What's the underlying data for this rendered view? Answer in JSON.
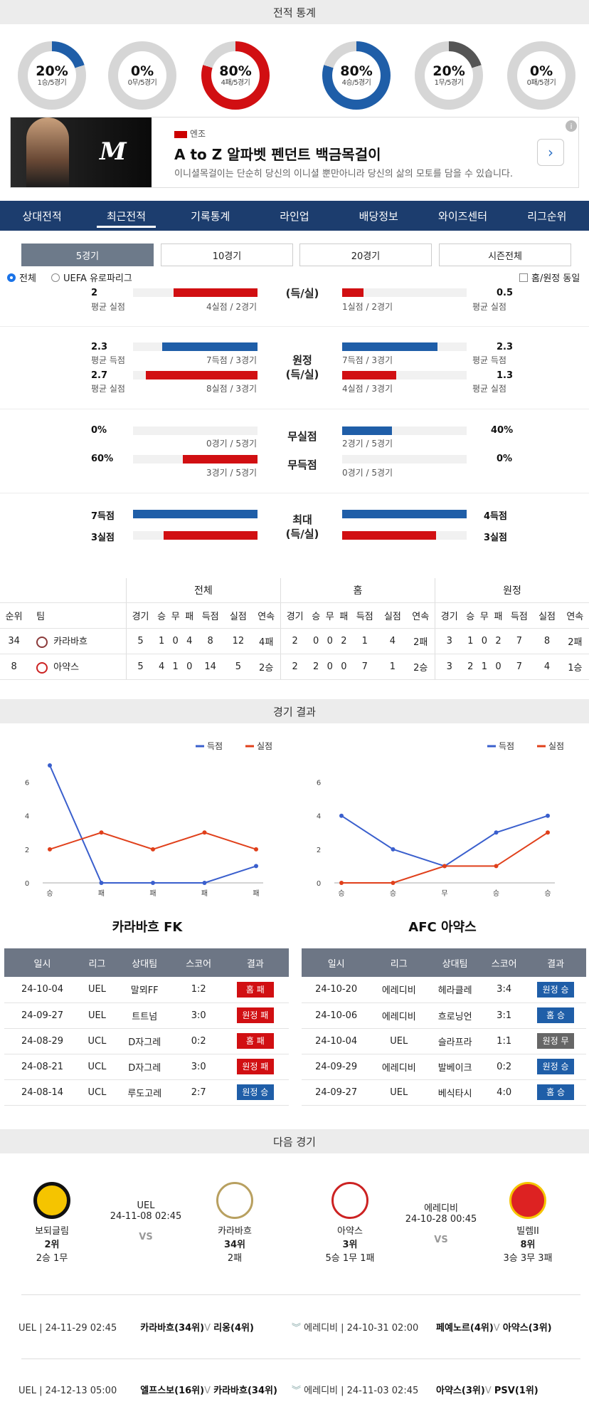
{
  "headers": {
    "record": "전적 통계",
    "match_result": "경기 결과",
    "next_match": "다음 경기"
  },
  "donuts": [
    {
      "pct": "20%",
      "sub": "1승/5경기",
      "fraction": 0.2,
      "color": "#1f5ea8"
    },
    {
      "pct": "0%",
      "sub": "0무/5경기",
      "fraction": 0,
      "color": "#888888"
    },
    {
      "pct": "80%",
      "sub": "4패/5경기",
      "fraction": 0.8,
      "color": "#d10f12"
    },
    {
      "pct": "80%",
      "sub": "4승/5경기",
      "fraction": 0.8,
      "color": "#1f5ea8"
    },
    {
      "pct": "20%",
      "sub": "1무/5경기",
      "fraction": 0.2,
      "color": "#555555"
    },
    {
      "pct": "0%",
      "sub": "0패/5경기",
      "fraction": 0,
      "color": "#d10f12"
    }
  ],
  "ad": {
    "logo": "M",
    "brand": "엔조",
    "title": "A to Z 알파벳 펜던트 백금목걸이",
    "desc": "이니셜목걸이는 단순히 당신의 이니셜 뿐만아니라 당신의 삶의 모토를 담을 수 있습니다.",
    "btn": "›",
    "info": "i"
  },
  "tabs": [
    "상대전적",
    "최근전적",
    "기록통계",
    "라인업",
    "배당정보",
    "와이즈센터",
    "리그순위"
  ],
  "active_tab": 1,
  "subtabs": [
    "5경기",
    "10경기",
    "20경기",
    "시즌전체"
  ],
  "filters": {
    "all": "전체",
    "uel": "UEFA 유로파리그",
    "homeaway": "홈/원정 동일"
  },
  "stats": {
    "row0": {
      "lval": "2",
      "llab": "평균 실점",
      "lsub": "4실점 / 2경기",
      "cent": "(득/실)",
      "rval": "0.5",
      "rlab": "평균 실점",
      "rsub": "1실점 / 2경기"
    },
    "away_scored": {
      "lval": "2.3",
      "llab": "평균 득점",
      "lsub": "7득점 / 3경기",
      "rval": "2.3",
      "rlab": "평균 득점",
      "rsub": "7득점 / 3경기"
    },
    "away_center": "원정\n(득/실)",
    "away_conceded": {
      "lval": "2.7",
      "llab": "평균 실점",
      "lsub": "8실점 / 3경기",
      "rval": "1.3",
      "rlab": "평균 실점",
      "rsub": "4실점 / 3경기"
    },
    "clean": {
      "lval": "0%",
      "lsub": "0경기 / 5경기",
      "cent": "무실점",
      "rval": "40%",
      "rsub": "2경기 / 5경기"
    },
    "noscore": {
      "lval": "60%",
      "lsub": "3경기 / 5경기",
      "cent": "무득점",
      "rval": "0%",
      "rsub": "0경기 / 5경기"
    },
    "max_goals": {
      "lval": "7득점",
      "rval": "4득점"
    },
    "max_center": "최대\n(득/실)",
    "max_conceded": {
      "lval": "3실점",
      "rval": "3실점"
    }
  },
  "standings": {
    "groups": [
      "전체",
      "홈",
      "원정"
    ],
    "cols_left": [
      "순위",
      "팀"
    ],
    "cols": [
      "경기",
      "승",
      "무",
      "패",
      "득점",
      "실점",
      "연속"
    ],
    "rows": [
      {
        "rank": "34",
        "team": "카라바흐",
        "icon": "#8b3a3a",
        "all": [
          "5",
          "1",
          "0",
          "4",
          "8",
          "12",
          "4패"
        ],
        "home": [
          "2",
          "0",
          "0",
          "2",
          "1",
          "4",
          "2패"
        ],
        "away": [
          "3",
          "1",
          "0",
          "2",
          "7",
          "8",
          "2패"
        ]
      },
      {
        "rank": "8",
        "team": "아약스",
        "icon": "#c22",
        "all": [
          "5",
          "4",
          "1",
          "0",
          "14",
          "5",
          "2승"
        ],
        "home": [
          "2",
          "2",
          "0",
          "0",
          "7",
          "1",
          "2승"
        ],
        "away": [
          "3",
          "2",
          "1",
          "0",
          "7",
          "4",
          "1승"
        ]
      }
    ]
  },
  "legend": {
    "scored": "득점",
    "conceded": "실점",
    "scored_color": "#3a5fcd",
    "conceded_color": "#e0401b"
  },
  "chart_data": [
    {
      "type": "line",
      "title": "카라바흐 FK",
      "categories": [
        "승",
        "패",
        "패",
        "패",
        "패"
      ],
      "ylim": [
        0,
        7
      ],
      "yticks": [
        "0",
        "2",
        "4",
        "6"
      ],
      "series": [
        {
          "name": "득점",
          "values": [
            7,
            0,
            0,
            0,
            1
          ]
        },
        {
          "name": "실점",
          "values": [
            2,
            3,
            2,
            3,
            2
          ]
        }
      ]
    },
    {
      "type": "line",
      "title": "AFC 아약스",
      "categories": [
        "승",
        "승",
        "무",
        "승",
        "승"
      ],
      "ylim": [
        0,
        7
      ],
      "yticks": [
        "0",
        "2",
        "4",
        "6"
      ],
      "series": [
        {
          "name": "득점",
          "values": [
            4,
            2,
            1,
            3,
            4
          ]
        },
        {
          "name": "실점",
          "values": [
            0,
            0,
            1,
            1,
            3
          ]
        }
      ]
    }
  ],
  "results_cols": [
    "일시",
    "리그",
    "상대팀",
    "스코어",
    "결과"
  ],
  "results_left": [
    {
      "date": "24-10-04",
      "league": "UEL",
      "opp": "말뫼FF",
      "score": "1:2",
      "res": "홈 패",
      "cls": "b-red"
    },
    {
      "date": "24-09-27",
      "league": "UEL",
      "opp": "트트넘",
      "score": "3:0",
      "res": "원정 패",
      "cls": "b-red"
    },
    {
      "date": "24-08-29",
      "league": "UCL",
      "opp": "D자그레",
      "score": "0:2",
      "res": "홈 패",
      "cls": "b-red"
    },
    {
      "date": "24-08-21",
      "league": "UCL",
      "opp": "D자그레",
      "score": "3:0",
      "res": "원정 패",
      "cls": "b-red"
    },
    {
      "date": "24-08-14",
      "league": "UCL",
      "opp": "루도고레",
      "score": "2:7",
      "res": "원정 승",
      "cls": "b-blue"
    }
  ],
  "results_right": [
    {
      "date": "24-10-20",
      "league": "에레디비",
      "opp": "헤라클레",
      "score": "3:4",
      "res": "원정 승",
      "cls": "b-blue"
    },
    {
      "date": "24-10-06",
      "league": "에레디비",
      "opp": "흐로닝언",
      "score": "3:1",
      "res": "홈 승",
      "cls": "b-blue"
    },
    {
      "date": "24-10-04",
      "league": "UEL",
      "opp": "슬라프라",
      "score": "1:1",
      "res": "원정 무",
      "cls": "b-gray"
    },
    {
      "date": "24-09-29",
      "league": "에레디비",
      "opp": "발베이크",
      "score": "0:2",
      "res": "원정 승",
      "cls": "b-blue"
    },
    {
      "date": "24-09-27",
      "league": "UEL",
      "opp": "베식타시",
      "score": "4:0",
      "res": "홈 승",
      "cls": "b-blue"
    }
  ],
  "next": {
    "left": {
      "home": "보되글림",
      "home_rank": "2위",
      "home_form": "2승 1무",
      "league": "UEL",
      "date": "24-11-08 02:45",
      "vs": "VS",
      "away": "카라바흐",
      "away_rank": "34위",
      "away_form": "2패"
    },
    "right": {
      "home": "아약스",
      "home_rank": "3위",
      "home_form": "5승 1무 1패",
      "league": "에레디비",
      "date": "24-10-28 00:45",
      "vs": "VS",
      "away": "빌렘II",
      "away_rank": "8위",
      "away_form": "3승 3무 3패"
    }
  },
  "upcoming": [
    {
      "left": "UEL | 24-11-29 02:45",
      "lteam1": "카라바흐(34위)",
      "lv": "V",
      "lteam2": "리옹(4위)",
      "right": "에레디비 | 24-10-31 02:00",
      "rteam1": "페예노르(4위)",
      "rv": "V",
      "rteam2": "아약스(3위)"
    },
    {
      "left": "UEL | 24-12-13 05:00",
      "lteam1": "엘프스보(16위)",
      "lv": "V",
      "lteam2": "카라바흐(34위)",
      "right": "에레디비 | 24-11-03 02:45",
      "rteam1": "아약스(3위)",
      "rv": "V",
      "rteam2": "PSV(1위)"
    }
  ]
}
